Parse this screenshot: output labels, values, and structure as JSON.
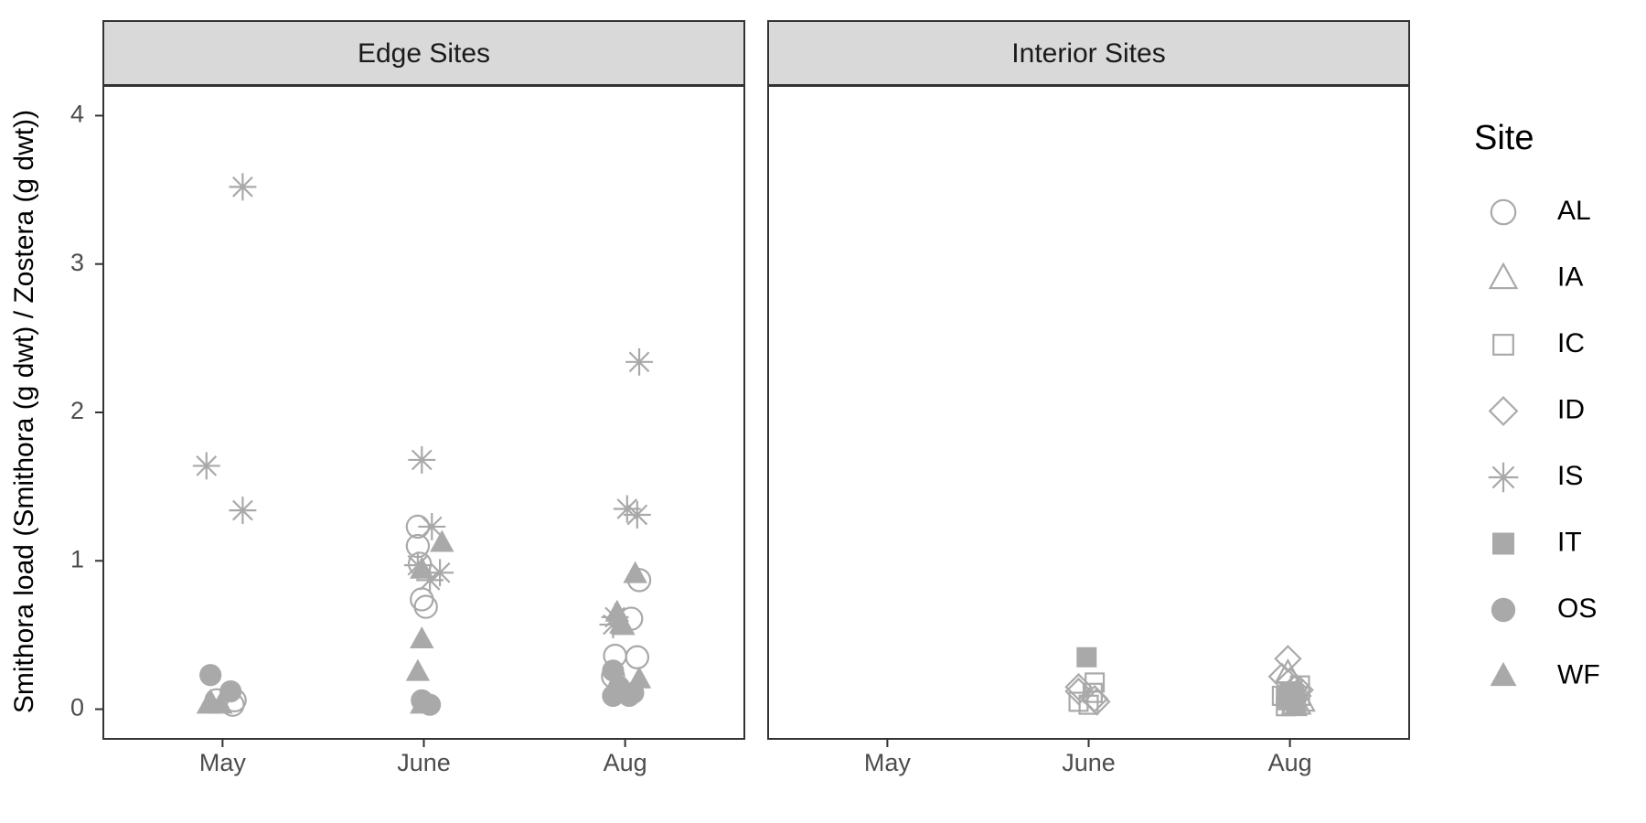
{
  "chart_data": {
    "type": "scatter",
    "ylabel": "Smithora load (Smithora (g dwt) / Zostera (g dwt))",
    "xlabel": "",
    "categories": [
      "May",
      "June",
      "Aug"
    ],
    "ylim": [
      -0.2,
      4.2
    ],
    "yticks": [
      0,
      1,
      2,
      3,
      4
    ],
    "grid": false,
    "legend": {
      "title": "Site",
      "position": "right",
      "entries": [
        {
          "label": "AL",
          "shape": "circle-open"
        },
        {
          "label": "IA",
          "shape": "triangle-open"
        },
        {
          "label": "IC",
          "shape": "square-open"
        },
        {
          "label": "ID",
          "shape": "diamond-open"
        },
        {
          "label": "IS",
          "shape": "asterisk"
        },
        {
          "label": "IT",
          "shape": "square-filled"
        },
        {
          "label": "OS",
          "shape": "circle-filled"
        },
        {
          "label": "WF",
          "shape": "triangle-filled"
        }
      ]
    },
    "marker_color": "#a9a9a9",
    "panels": [
      {
        "title": "Edge Sites",
        "points": [
          {
            "site": "IS",
            "month": "May",
            "jitter": -0.08,
            "y": 1.64
          },
          {
            "site": "IS",
            "month": "May",
            "jitter": 0.1,
            "y": 3.52
          },
          {
            "site": "IS",
            "month": "May",
            "jitter": 0.1,
            "y": 1.34
          },
          {
            "site": "OS",
            "month": "May",
            "jitter": -0.06,
            "y": 0.23
          },
          {
            "site": "OS",
            "month": "May",
            "jitter": 0.04,
            "y": 0.12
          },
          {
            "site": "AL",
            "month": "May",
            "jitter": -0.03,
            "y": 0.06
          },
          {
            "site": "AL",
            "month": "May",
            "jitter": 0.06,
            "y": 0.06
          },
          {
            "site": "AL",
            "month": "May",
            "jitter": 0.05,
            "y": 0.03
          },
          {
            "site": "WF",
            "month": "May",
            "jitter": -0.07,
            "y": 0.03
          },
          {
            "site": "WF",
            "month": "May",
            "jitter": -0.06,
            "y": 0.05
          },
          {
            "site": "WF",
            "month": "May",
            "jitter": -0.01,
            "y": 0.03
          },
          {
            "site": "IS",
            "month": "June",
            "jitter": -0.01,
            "y": 1.68
          },
          {
            "site": "IS",
            "month": "June",
            "jitter": 0.04,
            "y": 1.23
          },
          {
            "site": "IS",
            "month": "June",
            "jitter": -0.03,
            "y": 0.97
          },
          {
            "site": "IS",
            "month": "June",
            "jitter": 0.03,
            "y": 0.87
          },
          {
            "site": "IS",
            "month": "June",
            "jitter": 0.08,
            "y": 0.92
          },
          {
            "site": "AL",
            "month": "June",
            "jitter": -0.03,
            "y": 1.23
          },
          {
            "site": "AL",
            "month": "June",
            "jitter": -0.03,
            "y": 1.1
          },
          {
            "site": "AL",
            "month": "June",
            "jitter": -0.02,
            "y": 0.98
          },
          {
            "site": "AL",
            "month": "June",
            "jitter": -0.01,
            "y": 0.74
          },
          {
            "site": "AL",
            "month": "June",
            "jitter": 0.01,
            "y": 0.69
          },
          {
            "site": "WF",
            "month": "June",
            "jitter": -0.01,
            "y": 0.94
          },
          {
            "site": "WF",
            "month": "June",
            "jitter": 0.09,
            "y": 1.12
          },
          {
            "site": "WF",
            "month": "June",
            "jitter": -0.01,
            "y": 0.47
          },
          {
            "site": "WF",
            "month": "June",
            "jitter": -0.03,
            "y": 0.25
          },
          {
            "site": "WF",
            "month": "June",
            "jitter": -0.01,
            "y": 0.03
          },
          {
            "site": "OS",
            "month": "June",
            "jitter": -0.01,
            "y": 0.06
          },
          {
            "site": "OS",
            "month": "June",
            "jitter": 0.03,
            "y": 0.03
          },
          {
            "site": "IS",
            "month": "Aug",
            "jitter": 0.07,
            "y": 2.34
          },
          {
            "site": "IS",
            "month": "Aug",
            "jitter": 0.01,
            "y": 1.35
          },
          {
            "site": "IS",
            "month": "Aug",
            "jitter": 0.06,
            "y": 1.31
          },
          {
            "site": "IS",
            "month": "Aug",
            "jitter": -0.06,
            "y": 0.57
          },
          {
            "site": "IS",
            "month": "Aug",
            "jitter": -0.05,
            "y": 0.62
          },
          {
            "site": "AL",
            "month": "Aug",
            "jitter": 0.07,
            "y": 0.87
          },
          {
            "site": "AL",
            "month": "Aug",
            "jitter": 0.03,
            "y": 0.61
          },
          {
            "site": "AL",
            "month": "Aug",
            "jitter": -0.05,
            "y": 0.36
          },
          {
            "site": "AL",
            "month": "Aug",
            "jitter": 0.06,
            "y": 0.35
          },
          {
            "site": "AL",
            "month": "Aug",
            "jitter": -0.06,
            "y": 0.22
          },
          {
            "site": "WF",
            "month": "Aug",
            "jitter": 0.05,
            "y": 0.91
          },
          {
            "site": "WF",
            "month": "Aug",
            "jitter": -0.04,
            "y": 0.65
          },
          {
            "site": "WF",
            "month": "Aug",
            "jitter": -0.01,
            "y": 0.56
          },
          {
            "site": "WF",
            "month": "Aug",
            "jitter": -0.02,
            "y": 0.57
          },
          {
            "site": "WF",
            "month": "Aug",
            "jitter": 0.07,
            "y": 0.2
          },
          {
            "site": "OS",
            "month": "Aug",
            "jitter": -0.06,
            "y": 0.26
          },
          {
            "site": "OS",
            "month": "Aug",
            "jitter": -0.03,
            "y": 0.15
          },
          {
            "site": "OS",
            "month": "Aug",
            "jitter": -0.06,
            "y": 0.09
          },
          {
            "site": "OS",
            "month": "Aug",
            "jitter": 0.02,
            "y": 0.09
          },
          {
            "site": "OS",
            "month": "Aug",
            "jitter": 0.04,
            "y": 0.11
          }
        ]
      },
      {
        "title": "Interior Sites",
        "points": [
          {
            "site": "IT",
            "month": "June",
            "jitter": -0.01,
            "y": 0.35
          },
          {
            "site": "ID",
            "month": "June",
            "jitter": -0.05,
            "y": 0.15
          },
          {
            "site": "ID",
            "month": "June",
            "jitter": -0.05,
            "y": 0.12
          },
          {
            "site": "IC",
            "month": "June",
            "jitter": -0.05,
            "y": 0.05
          },
          {
            "site": "IC",
            "month": "June",
            "jitter": 0.0,
            "y": 0.03
          },
          {
            "site": "IC",
            "month": "June",
            "jitter": 0.03,
            "y": 0.18
          },
          {
            "site": "IC",
            "month": "June",
            "jitter": 0.02,
            "y": 0.11
          },
          {
            "site": "ID",
            "month": "June",
            "jitter": 0.03,
            "y": 0.07
          },
          {
            "site": "ID",
            "month": "June",
            "jitter": 0.04,
            "y": 0.05
          },
          {
            "site": "ID",
            "month": "Aug",
            "jitter": -0.01,
            "y": 0.34
          },
          {
            "site": "ID",
            "month": "Aug",
            "jitter": -0.04,
            "y": 0.22
          },
          {
            "site": "IA",
            "month": "Aug",
            "jitter": -0.01,
            "y": 0.24
          },
          {
            "site": "ID",
            "month": "Aug",
            "jitter": 0.0,
            "y": 0.19
          },
          {
            "site": "ID",
            "month": "Aug",
            "jitter": 0.02,
            "y": 0.14
          },
          {
            "site": "IC",
            "month": "Aug",
            "jitter": 0.05,
            "y": 0.16
          },
          {
            "site": "IC",
            "month": "Aug",
            "jitter": -0.04,
            "y": 0.09
          },
          {
            "site": "IC",
            "month": "Aug",
            "jitter": 0.05,
            "y": 0.09
          },
          {
            "site": "ID",
            "month": "Aug",
            "jitter": 0.04,
            "y": 0.09
          },
          {
            "site": "IA",
            "month": "Aug",
            "jitter": 0.06,
            "y": 0.05
          },
          {
            "site": "IA",
            "month": "Aug",
            "jitter": 0.04,
            "y": 0.03
          },
          {
            "site": "IT",
            "month": "Aug",
            "jitter": -0.02,
            "y": 0.09
          },
          {
            "site": "IT",
            "month": "Aug",
            "jitter": -0.01,
            "y": 0.06
          },
          {
            "site": "IT",
            "month": "Aug",
            "jitter": 0.01,
            "y": 0.1
          },
          {
            "site": "IT",
            "month": "Aug",
            "jitter": 0.03,
            "y": 0.04
          },
          {
            "site": "IT",
            "month": "Aug",
            "jitter": 0.0,
            "y": 0.12
          },
          {
            "site": "IC",
            "month": "Aug",
            "jitter": -0.02,
            "y": 0.02
          },
          {
            "site": "IC",
            "month": "Aug",
            "jitter": 0.01,
            "y": 0.03
          },
          {
            "site": "ID",
            "month": "Aug",
            "jitter": 0.05,
            "y": 0.13
          },
          {
            "site": "IA",
            "month": "Aug",
            "jitter": 0.02,
            "y": 0.02
          }
        ]
      }
    ]
  }
}
